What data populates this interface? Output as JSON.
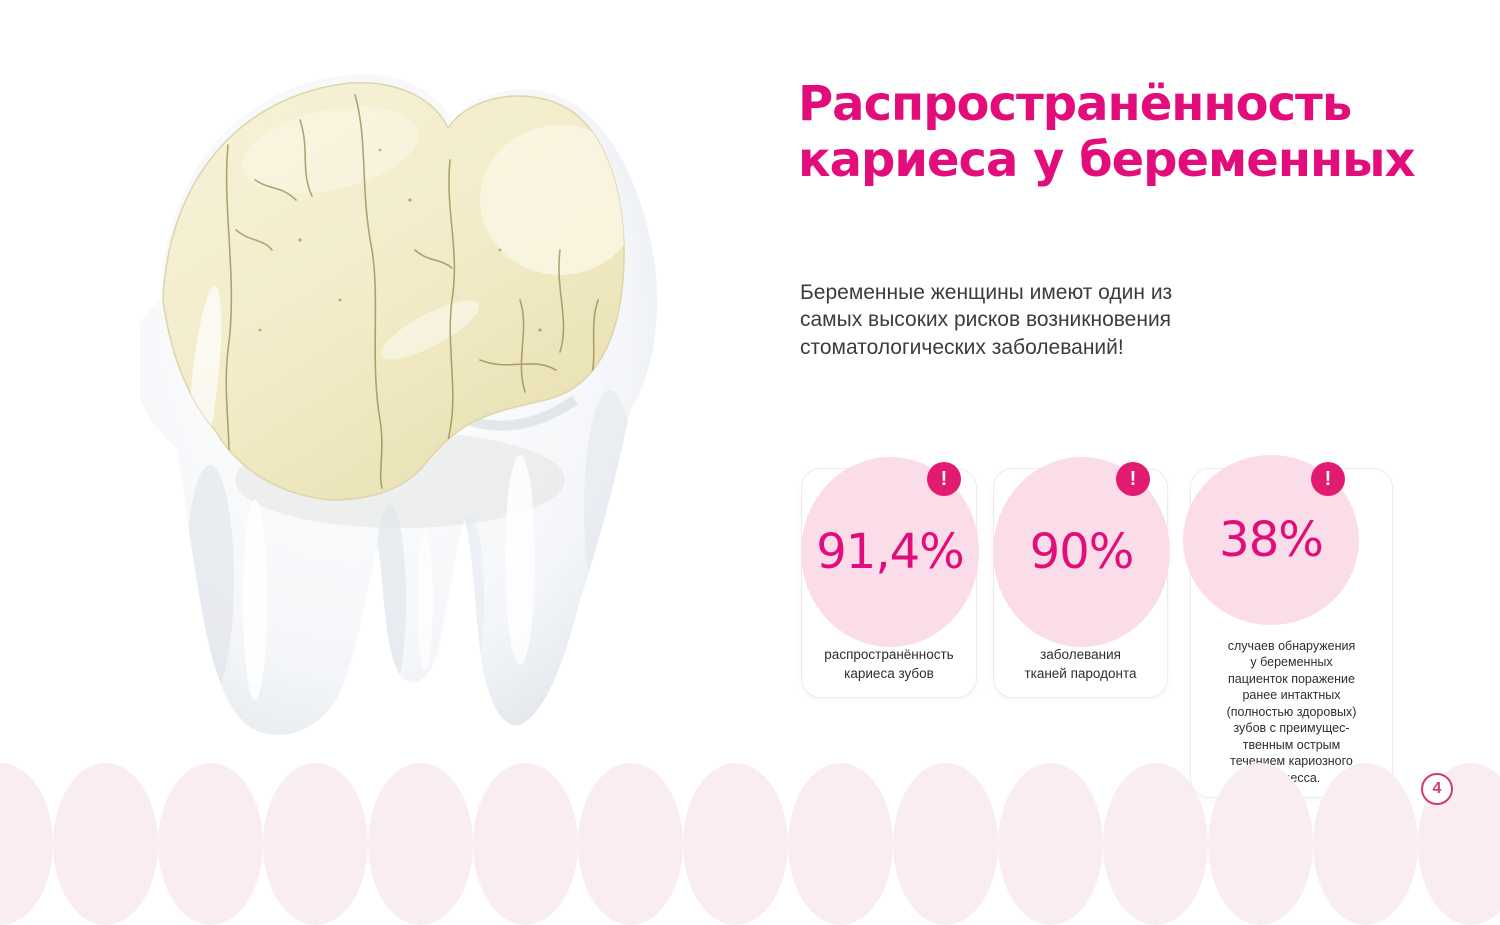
{
  "slide": {
    "title": "Распространённость\nкариеса у беременных",
    "intro": "Беременные женщины имеют один из\nсамых высоких рисков возникновения\nстоматологических заболеваний!",
    "page_number": "4",
    "image_alt": "3D-модель зуба с потрескавшейся эмалью (кариес)"
  },
  "stats": [
    {
      "value": "91,4%",
      "badge": "!",
      "caption": "распространённость\nкариеса зубов"
    },
    {
      "value": "90%",
      "badge": "!",
      "caption": "заболевания\nтканей пародонта"
    },
    {
      "value": "38%",
      "badge": "!",
      "caption": "случаев обнаружения\nу беременных\nпациенток поражение\nранее интактных\n(полностью здоровых)\nзубов с преимущес-\nтвенным острым\nтечением кариозного\nпроцесса."
    }
  ],
  "colors": {
    "accent": "#e20d7b",
    "badge": "#e21b70",
    "bubble": "#fbdde9",
    "scallop": "#f9edf2",
    "ring": "#ce3b72",
    "card_border": "#ececec",
    "text": "#3c3c3c"
  }
}
